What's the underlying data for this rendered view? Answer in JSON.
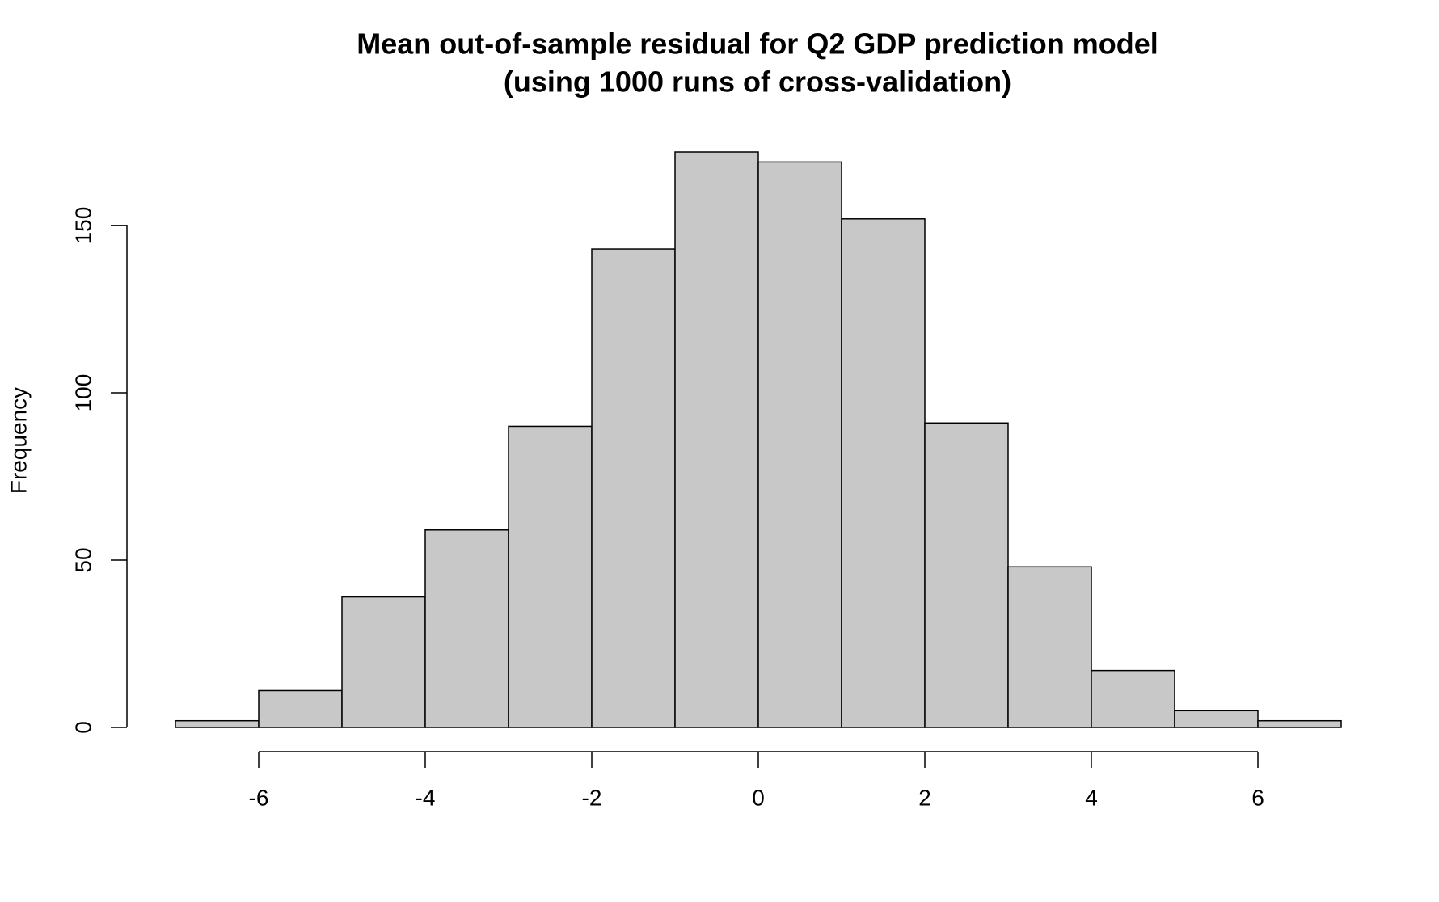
{
  "chart_data": {
    "type": "histogram",
    "title": [
      "Mean out-of-sample residual for Q2 GDP prediction model",
      "(using 1000 runs of cross-validation)"
    ],
    "y_label": "Frequency",
    "bins": [
      -7,
      -6,
      -5,
      -4,
      -3,
      -2,
      -1,
      0,
      1,
      2,
      3,
      4,
      5,
      6,
      7
    ],
    "values": [
      2,
      11,
      39,
      59,
      90,
      143,
      172,
      169,
      152,
      91,
      48,
      17,
      5,
      2
    ],
    "color": "#c8c8c8",
    "xlim": [
      -7,
      7
    ],
    "ylim": [
      0,
      172
    ],
    "xticks": [
      -6,
      -4,
      -2,
      0,
      2,
      4,
      6
    ],
    "yticks": [
      0,
      50,
      100,
      150
    ],
    "grid": false
  }
}
